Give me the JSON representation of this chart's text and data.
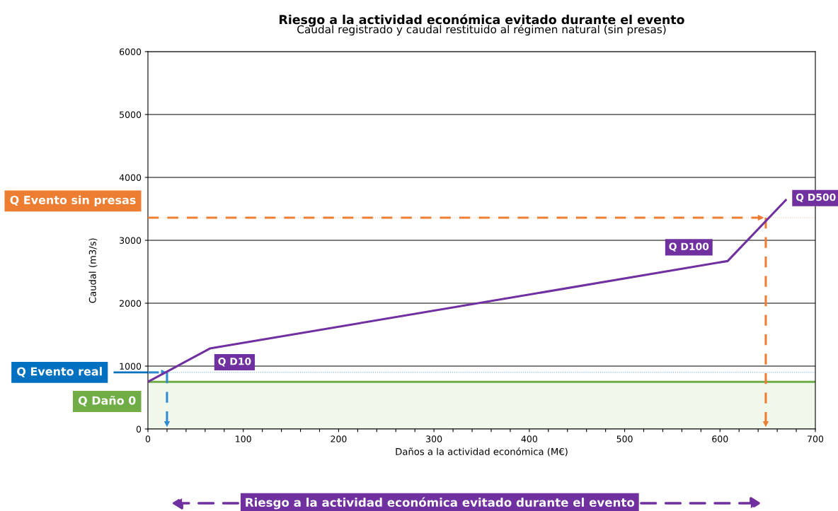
{
  "chart_data": {
    "type": "line",
    "title": "Riesgo a la actividad económica evitado durante el evento",
    "subtitle": "Caudal registrado y caudal restituido al régimen natural (sin presas)",
    "xlabel": "Daños a la actividad económica (M€)",
    "ylabel": "Caudal (m3/s)",
    "xlim": [
      0,
      700
    ],
    "ylim": [
      0,
      6000
    ],
    "xticks": [
      0,
      {
        "value": 20,
        "label": null
      },
      {
        "value": 40,
        "label": null
      },
      {
        "value": 60,
        "label": null
      },
      {
        "value": 80,
        "label": null
      },
      100,
      {
        "value": 120,
        "label": null
      },
      {
        "value": 140,
        "label": null
      },
      {
        "value": 160,
        "label": null
      },
      {
        "value": 180,
        "label": null
      },
      200,
      {
        "value": 220,
        "label": null
      },
      {
        "value": 240,
        "label": null
      },
      {
        "value": 260,
        "label": null
      },
      {
        "value": 280,
        "label": null
      },
      300,
      {
        "value": 320,
        "label": null
      },
      {
        "value": 340,
        "label": null
      },
      {
        "value": 360,
        "label": null
      },
      {
        "value": 380,
        "label": null
      },
      400,
      {
        "value": 420,
        "label": null
      },
      {
        "value": 440,
        "label": null
      },
      {
        "value": 460,
        "label": null
      },
      {
        "value": 480,
        "label": null
      },
      500,
      {
        "value": 520,
        "label": null
      },
      {
        "value": 540,
        "label": null
      },
      {
        "value": 560,
        "label": null
      },
      {
        "value": 580,
        "label": null
      },
      600,
      {
        "value": 620,
        "label": null
      },
      {
        "value": 640,
        "label": null
      },
      {
        "value": 660,
        "label": null
      },
      {
        "value": 680,
        "label": null
      },
      700
    ],
    "yticks": [
      0,
      1000,
      2000,
      3000,
      4000,
      5000,
      6000
    ],
    "grid": "y",
    "marker": "none",
    "series": [
      {
        "color": "#7030a0",
        "x": [
          0,
          65,
          608,
          669
        ],
        "values": [
          750,
          1280,
          2670,
          3640
        ],
        "line_style": "solid"
      },
      {
        "color": "#2e8bd0",
        "x": [
          0,
          20
        ],
        "values": [
          900,
          900
        ],
        "line_style": "dashed"
      },
      {
        "color": "#2e8bd0",
        "x": [
          20,
          20
        ],
        "values": [
          900,
          0
        ],
        "line_style": "dashed"
      },
      {
        "color": "#ed7d31",
        "x": [
          0,
          648
        ],
        "values": [
          3360,
          3360
        ],
        "line_style": "dashed"
      },
      {
        "color": "#ed7d31",
        "x": [
          648,
          648
        ],
        "values": [
          3360,
          0
        ],
        "line_style": "dashed"
      }
    ],
    "bands": [
      {
        "axis": "y",
        "from": 0,
        "to": 750,
        "color": "#f0f8ec"
      }
    ],
    "ref_lines": [
      {
        "axis": "y",
        "value": 750,
        "label": "Q Daño 0",
        "color": "#70ad47",
        "line_style": "solid"
      },
      {
        "axis": "y",
        "value": 900,
        "label": "Q Evento real",
        "color": "#0070c0",
        "line_style": "dotted"
      },
      {
        "axis": "y",
        "value": 3360,
        "label": "Q Evento sin presas",
        "color": "#ed7d31",
        "line_style": "dotted"
      }
    ],
    "annotations": [
      {
        "text": "Q D10",
        "x": 65,
        "y": 1280
      },
      {
        "text": "Q D100",
        "x": 608,
        "y": 2670
      },
      {
        "text": "Q D500",
        "x": 669,
        "y": 3640
      },
      "Riesgo a la actividad económica evitado durante el evento"
    ]
  }
}
